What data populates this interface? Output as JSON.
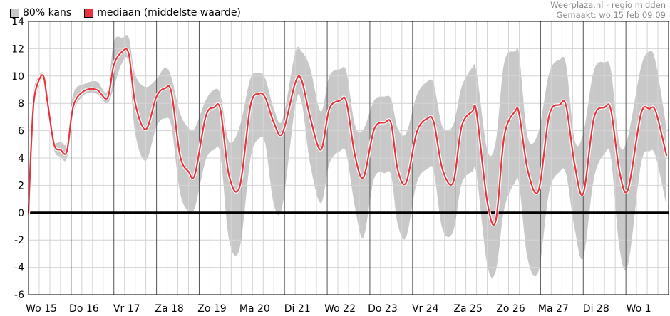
{
  "legend": [
    {
      "label": "80% kans",
      "color": "#c8c8c8"
    },
    {
      "label": "mediaan (middelste waarde)",
      "color": "#e8323c"
    }
  ],
  "credits": {
    "source": "Weerplaza.nl - regio midden",
    "made": "Gemaakt: wo 15 feb 09:09"
  },
  "chart_data": {
    "type": "area",
    "title": "",
    "xlabel": "",
    "ylabel": "",
    "ylim": [
      -6,
      14
    ],
    "yticks": [
      -6,
      -4,
      -2,
      0,
      2,
      4,
      6,
      8,
      10,
      12,
      14
    ],
    "grid": true,
    "legend_position": "top-left",
    "x_unit": "days from start",
    "categories": [
      "Wo 15",
      "Do 16",
      "Vr 17",
      "Za 18",
      "Zo 19",
      "Ma 20",
      "Di 21",
      "Wo 22",
      "Do 23",
      "Vr 24",
      "Za 25",
      "Zo 26",
      "Ma 27",
      "Di 28",
      "Wo 1"
    ],
    "series": [
      {
        "name": "mediaan (middelste waarde)",
        "color": "#e8323c",
        "points": [
          [
            0,
            0
          ],
          [
            0.05,
            4
          ],
          [
            0.12,
            8
          ],
          [
            0.22,
            9.5
          ],
          [
            0.35,
            10
          ],
          [
            0.45,
            8
          ],
          [
            0.6,
            5
          ],
          [
            0.75,
            4.6
          ],
          [
            0.9,
            4.5
          ],
          [
            1.05,
            7.8
          ],
          [
            1.3,
            8.9
          ],
          [
            1.6,
            9
          ],
          [
            1.85,
            8.4
          ],
          [
            2.0,
            10.8
          ],
          [
            2.2,
            11.8
          ],
          [
            2.35,
            11.6
          ],
          [
            2.5,
            8
          ],
          [
            2.75,
            6.1
          ],
          [
            3.0,
            8.5
          ],
          [
            3.2,
            9.1
          ],
          [
            3.35,
            8.8
          ],
          [
            3.55,
            4.2
          ],
          [
            3.75,
            3
          ],
          [
            3.9,
            2.8
          ],
          [
            4.15,
            7
          ],
          [
            4.35,
            7.7
          ],
          [
            4.5,
            7.5
          ],
          [
            4.7,
            2.7
          ],
          [
            4.95,
            1.9
          ],
          [
            5.2,
            7.8
          ],
          [
            5.4,
            8.7
          ],
          [
            5.55,
            8.4
          ],
          [
            5.75,
            6.6
          ],
          [
            5.95,
            5.8
          ],
          [
            6.25,
            9.5
          ],
          [
            6.4,
            9.7
          ],
          [
            6.6,
            7
          ],
          [
            6.85,
            4.6
          ],
          [
            7.05,
            7.6
          ],
          [
            7.3,
            8.2
          ],
          [
            7.45,
            8.1
          ],
          [
            7.65,
            4.2
          ],
          [
            7.85,
            2.6
          ],
          [
            8.1,
            6.1
          ],
          [
            8.35,
            6.6
          ],
          [
            8.5,
            6.5
          ],
          [
            8.65,
            3.2
          ],
          [
            8.85,
            2.2
          ],
          [
            9.1,
            5.9
          ],
          [
            9.35,
            6.9
          ],
          [
            9.5,
            6.6
          ],
          [
            9.7,
            3.2
          ],
          [
            9.95,
            2.2
          ],
          [
            10.15,
            6.3
          ],
          [
            10.4,
            7.4
          ],
          [
            10.5,
            7.3
          ],
          [
            10.75,
            0.8
          ],
          [
            10.95,
            -0.6
          ],
          [
            11.15,
            5.6
          ],
          [
            11.4,
            7.4
          ],
          [
            11.5,
            7.2
          ],
          [
            11.7,
            3.1
          ],
          [
            11.95,
            1.6
          ],
          [
            12.2,
            7.1
          ],
          [
            12.45,
            7.9
          ],
          [
            12.6,
            7.8
          ],
          [
            12.8,
            3.5
          ],
          [
            13.0,
            1.4
          ],
          [
            13.25,
            6.9
          ],
          [
            13.5,
            7.7
          ],
          [
            13.65,
            7.5
          ],
          [
            13.85,
            3
          ],
          [
            14.05,
            1.7
          ],
          [
            14.35,
            7.2
          ],
          [
            14.55,
            7.6
          ],
          [
            14.7,
            7.4
          ],
          [
            14.95,
            4.2
          ]
        ]
      },
      {
        "name": "80% kans",
        "color": "#c8c8c8",
        "upper": [
          [
            0,
            0
          ],
          [
            0.05,
            4.8
          ],
          [
            0.12,
            8.8
          ],
          [
            0.22,
            9.9
          ],
          [
            0.35,
            10.2
          ],
          [
            0.45,
            8.5
          ],
          [
            0.6,
            5.4
          ],
          [
            0.75,
            5.2
          ],
          [
            0.9,
            5.2
          ],
          [
            1.05,
            8.7
          ],
          [
            1.3,
            9.4
          ],
          [
            1.6,
            9.6
          ],
          [
            1.85,
            8.9
          ],
          [
            2.0,
            12.5
          ],
          [
            2.2,
            12.8
          ],
          [
            2.35,
            12.8
          ],
          [
            2.5,
            10.1
          ],
          [
            2.75,
            9.2
          ],
          [
            3.0,
            9.8
          ],
          [
            3.2,
            10.6
          ],
          [
            3.35,
            9.9
          ],
          [
            3.55,
            7.3
          ],
          [
            3.75,
            6.2
          ],
          [
            3.9,
            6.2
          ],
          [
            4.15,
            8.2
          ],
          [
            4.35,
            9
          ],
          [
            4.5,
            8.6
          ],
          [
            4.7,
            5.2
          ],
          [
            4.95,
            6.3
          ],
          [
            5.2,
            9.8
          ],
          [
            5.4,
            10.2
          ],
          [
            5.55,
            9.8
          ],
          [
            5.75,
            7.6
          ],
          [
            5.95,
            6.8
          ],
          [
            6.25,
            11.7
          ],
          [
            6.4,
            11.8
          ],
          [
            6.6,
            10.6
          ],
          [
            6.85,
            7.4
          ],
          [
            7.05,
            10
          ],
          [
            7.3,
            10.5
          ],
          [
            7.45,
            10.3
          ],
          [
            7.65,
            6.4
          ],
          [
            7.85,
            6.1
          ],
          [
            8.1,
            8.2
          ],
          [
            8.35,
            8.5
          ],
          [
            8.5,
            8.3
          ],
          [
            8.65,
            6.2
          ],
          [
            8.85,
            5.8
          ],
          [
            9.1,
            8.6
          ],
          [
            9.35,
            9.6
          ],
          [
            9.5,
            9.4
          ],
          [
            9.7,
            6.3
          ],
          [
            9.95,
            6.4
          ],
          [
            10.15,
            9.2
          ],
          [
            10.4,
            10.6
          ],
          [
            10.5,
            10.3
          ],
          [
            10.75,
            4.6
          ],
          [
            10.95,
            5.2
          ],
          [
            11.15,
            11
          ],
          [
            11.4,
            11.8
          ],
          [
            11.5,
            11.5
          ],
          [
            11.7,
            5.5
          ],
          [
            11.95,
            5.9
          ],
          [
            12.2,
            10.2
          ],
          [
            12.45,
            11.2
          ],
          [
            12.6,
            10.8
          ],
          [
            12.8,
            5.3
          ],
          [
            13.0,
            5.8
          ],
          [
            13.25,
            10.4
          ],
          [
            13.5,
            11
          ],
          [
            13.65,
            10.4
          ],
          [
            13.85,
            5
          ],
          [
            14.05,
            5.6
          ],
          [
            14.35,
            10.6
          ],
          [
            14.55,
            11.8
          ],
          [
            14.7,
            11
          ],
          [
            14.95,
            6.2
          ]
        ],
        "lower": [
          [
            0,
            0
          ],
          [
            0.05,
            3.5
          ],
          [
            0.12,
            7.5
          ],
          [
            0.22,
            9
          ],
          [
            0.35,
            9.8
          ],
          [
            0.45,
            7.5
          ],
          [
            0.6,
            4.6
          ],
          [
            0.75,
            4.1
          ],
          [
            0.9,
            4
          ],
          [
            1.05,
            7.3
          ],
          [
            1.3,
            8.6
          ],
          [
            1.6,
            8.7
          ],
          [
            1.85,
            8.0
          ],
          [
            2.0,
            9.2
          ],
          [
            2.2,
            11
          ],
          [
            2.35,
            10.9
          ],
          [
            2.5,
            5.8
          ],
          [
            2.75,
            3.8
          ],
          [
            3.0,
            6.3
          ],
          [
            3.2,
            6.9
          ],
          [
            3.35,
            6.3
          ],
          [
            3.55,
            1.5
          ],
          [
            3.75,
            0.1
          ],
          [
            3.9,
            0.4
          ],
          [
            4.15,
            3.8
          ],
          [
            4.35,
            4.6
          ],
          [
            4.5,
            4.2
          ],
          [
            4.7,
            -2
          ],
          [
            4.95,
            -2.6
          ],
          [
            5.2,
            3.9
          ],
          [
            5.4,
            5.4
          ],
          [
            5.55,
            5
          ],
          [
            5.75,
            0.6
          ],
          [
            5.95,
            0.5
          ],
          [
            6.25,
            7.8
          ],
          [
            6.4,
            8.1
          ],
          [
            6.6,
            3.6
          ],
          [
            6.85,
            0.7
          ],
          [
            7.05,
            3.6
          ],
          [
            7.3,
            4.5
          ],
          [
            7.45,
            4.3
          ],
          [
            7.65,
            0.4
          ],
          [
            7.85,
            -1.8
          ],
          [
            8.1,
            2.5
          ],
          [
            8.35,
            2.9
          ],
          [
            8.5,
            2.7
          ],
          [
            8.65,
            -0.8
          ],
          [
            8.85,
            -1.8
          ],
          [
            9.1,
            2.2
          ],
          [
            9.35,
            3.2
          ],
          [
            9.5,
            3
          ],
          [
            9.7,
            -1.2
          ],
          [
            9.95,
            -1.4
          ],
          [
            10.15,
            2.1
          ],
          [
            10.4,
            3
          ],
          [
            10.5,
            2.8
          ],
          [
            10.75,
            -3.8
          ],
          [
            10.95,
            -4.3
          ],
          [
            11.15,
            0.3
          ],
          [
            11.4,
            2.2
          ],
          [
            11.5,
            2
          ],
          [
            11.7,
            -3.4
          ],
          [
            11.95,
            -4.3
          ],
          [
            12.2,
            1.5
          ],
          [
            12.45,
            3
          ],
          [
            12.6,
            2.8
          ],
          [
            12.8,
            -1.2
          ],
          [
            13.0,
            -3.3
          ],
          [
            13.25,
            2.5
          ],
          [
            13.5,
            4.3
          ],
          [
            13.65,
            4
          ],
          [
            13.85,
            -2.6
          ],
          [
            14.05,
            -3.8
          ],
          [
            14.35,
            3.5
          ],
          [
            14.55,
            4.5
          ],
          [
            14.7,
            4.1
          ],
          [
            14.95,
            0.5
          ]
        ]
      }
    ]
  }
}
